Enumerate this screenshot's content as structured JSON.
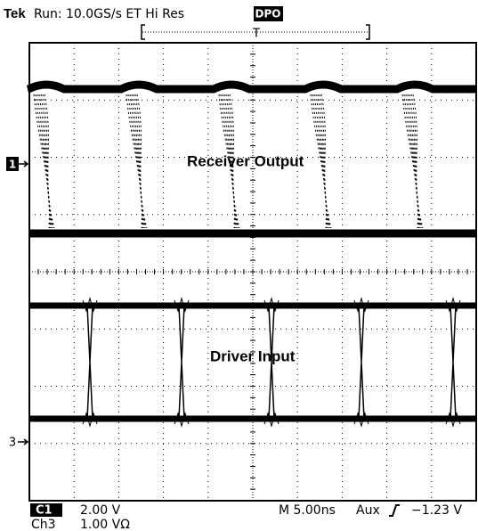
{
  "header": {
    "brand": "Tek",
    "status": "Run: 10.0GS/s ET Hi Res",
    "mode": "DPO",
    "trigger_marker": "T"
  },
  "labels": {
    "upper": "Receiver Output",
    "lower": "Driver Input"
  },
  "markers": {
    "ch1": "1",
    "ch3": "3"
  },
  "footer": {
    "ch1_name": "C1",
    "ch1_scale": "2.00 V",
    "ch3_name": "Ch3",
    "ch3_scale": "1.00 VΩ",
    "timebase": "M 5.00ns",
    "trigger_source": "Aux",
    "trigger_level": "−1.23 V"
  }
}
